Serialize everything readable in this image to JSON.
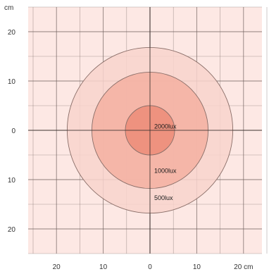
{
  "chart_data": {
    "type": "other",
    "description": "Illuminance footprint (isolux rings) on a centimeter grid",
    "unit_label": "cm",
    "x_unit_label": "20 cm",
    "xlim": [
      -25,
      25
    ],
    "ylim": [
      -25,
      25
    ],
    "grid_step": 5,
    "x_tick_values": [
      -20,
      -10,
      0,
      10,
      20
    ],
    "x_tick_labels": [
      "20",
      "10",
      "0",
      "10",
      "20 cm"
    ],
    "y_tick_values": [
      20,
      10,
      0,
      -10,
      -20
    ],
    "y_tick_labels": [
      "20",
      "10",
      "0",
      "10",
      "20"
    ],
    "zones": [
      {
        "label": "500lux",
        "radius": 16.8,
        "fill": "#f8d4cc"
      },
      {
        "label": "1000lux",
        "radius": 11.8,
        "fill": "#f4b0a1"
      },
      {
        "label": "2000lux",
        "radius": 5,
        "fill": "#ec8c78"
      }
    ],
    "colors": {
      "background": "#fde8e4",
      "grid": "#6d5e5b",
      "ring_stroke": "#8a6e68"
    }
  }
}
